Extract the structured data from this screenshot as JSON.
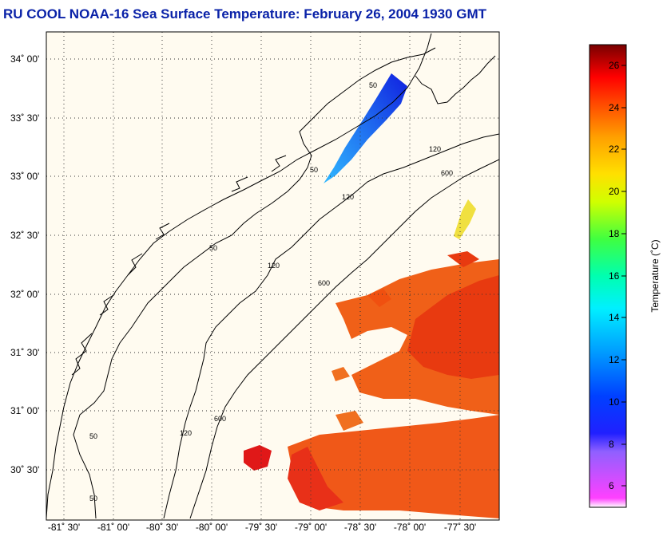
{
  "title": "RU COOL  NOAA-16  Sea Surface Temperature:  February 26, 2004 1930 GMT",
  "lat_labels": [
    "34˚ 00'",
    "33˚ 30'",
    "33˚ 00'",
    "32˚ 30'",
    "32˚ 00'",
    "31˚ 30'",
    "31˚ 00'",
    "30˚ 30'"
  ],
  "lon_labels": [
    "-81˚ 30'",
    "-81˚ 00'",
    "-80˚ 30'",
    "-80˚ 00'",
    "-79˚ 30'",
    "-79˚ 00'",
    "-78˚ 30'",
    "-78˚ 00'",
    "-77˚ 30'"
  ],
  "isobath_labels": [
    "50",
    "50",
    "50",
    "50",
    "50",
    "120",
    "120",
    "120",
    "120",
    "600",
    "600",
    "600"
  ],
  "colorbar": {
    "label": "Temperature (˚C)",
    "ticks": [
      "26",
      "24",
      "22",
      "20",
      "18",
      "16",
      "14",
      "12",
      "10",
      "8",
      "6"
    ],
    "range": [
      5,
      27
    ]
  },
  "colors": {
    "title": "#0a22a8",
    "land_ocean": "#fffbf0",
    "grid": "#000000"
  }
}
